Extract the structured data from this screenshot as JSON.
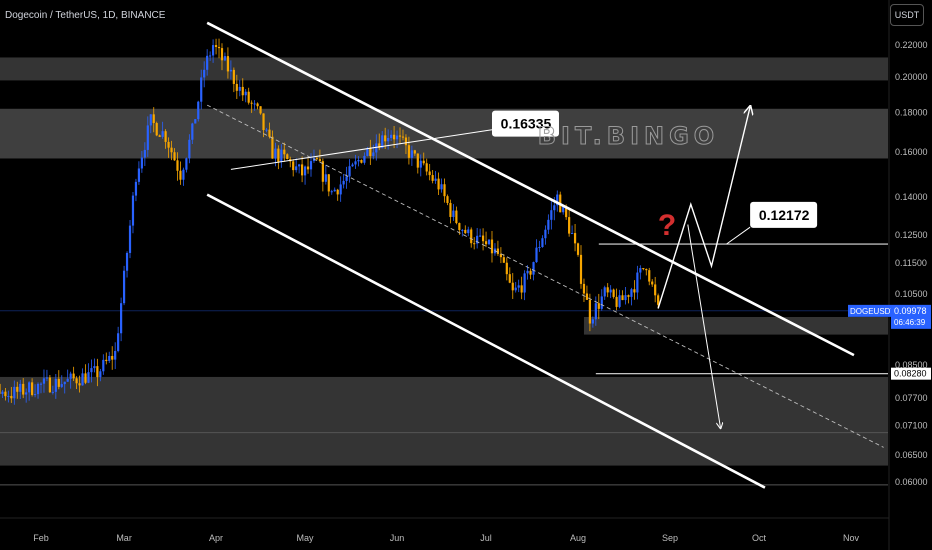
{
  "header": {
    "title": "Dogecoin / TetherUS, 1D, BINANCE"
  },
  "axis": {
    "unit": "USDT"
  },
  "price_ticks": [
    "0.22000",
    "0.20000",
    "0.18000",
    "0.16000",
    "0.14000",
    "0.12500",
    "0.11500",
    "0.10500",
    "0.08500",
    "0.07700",
    "0.07100",
    "0.06500",
    "0.06000"
  ],
  "months": [
    "Feb",
    "Mar",
    "Apr",
    "May",
    "Jun",
    "Jul",
    "Aug",
    "Sep",
    "Oct",
    "Nov"
  ],
  "labels": {
    "symbol": "DOGEUSDT",
    "last_price": "0.09978",
    "countdown": "06:46:39",
    "support": "0.08280"
  },
  "annotations": {
    "callout_high": "0.16335",
    "callout_mid": "0.12172",
    "question": "?",
    "watermark": "BIT.BINGO"
  },
  "colors": {
    "up": "#2962ff",
    "down": "#f7a600",
    "zone": "#4a4a4a",
    "question": "#d32f2f",
    "price_tag": "#2962ff"
  },
  "chart_data": {
    "type": "candlestick",
    "ylim": [
      0.058,
      0.23
    ],
    "scale": "log",
    "zones": [
      {
        "from": 0.198,
        "to": 0.212
      },
      {
        "from": 0.157,
        "to": 0.182
      },
      {
        "from": 0.093,
        "to": 0.098
      },
      {
        "from": 0.063,
        "to": 0.082
      }
    ],
    "levels": [
      0.12172,
      0.0828,
      0.0695,
      0.0595
    ],
    "channel": {
      "start": "Mar 29",
      "end": "Nov 2"
    },
    "price_path": [
      [
        "Jan 1",
        0.08
      ],
      [
        "Jan 8",
        0.078
      ],
      [
        "Jan 15",
        0.079
      ],
      [
        "Jan 22",
        0.078
      ],
      [
        "Feb 1",
        0.08
      ],
      [
        "Feb 10",
        0.081
      ],
      [
        "Feb 20",
        0.083
      ],
      [
        "Feb 26",
        0.088
      ],
      [
        "Mar 1",
        0.11
      ],
      [
        "Mar 5",
        0.15
      ],
      [
        "Mar 10",
        0.175
      ],
      [
        "Mar 15",
        0.168
      ],
      [
        "Mar 20",
        0.15
      ],
      [
        "Mar 24",
        0.17
      ],
      [
        "Mar 28",
        0.205
      ],
      [
        "Mar 31",
        0.22
      ],
      [
        "Apr 5",
        0.205
      ],
      [
        "Apr 10",
        0.19
      ],
      [
        "Apr 15",
        0.18
      ],
      [
        "Apr 20",
        0.16
      ],
      [
        "Apr 25",
        0.156
      ],
      [
        "Apr 30",
        0.15
      ],
      [
        "May 5",
        0.155
      ],
      [
        "May 10",
        0.142
      ],
      [
        "May 15",
        0.148
      ],
      [
        "May 20",
        0.158
      ],
      [
        "May 25",
        0.165
      ],
      [
        "May 30",
        0.17
      ],
      [
        "Jun 5",
        0.16
      ],
      [
        "Jun 10",
        0.152
      ],
      [
        "Jun 15",
        0.145
      ],
      [
        "Jun 20",
        0.132
      ],
      [
        "Jun 25",
        0.125
      ],
      [
        "Jun 30",
        0.122
      ],
      [
        "Jul 5",
        0.118
      ],
      [
        "Jul 10",
        0.105
      ],
      [
        "Jul 15",
        0.11
      ],
      [
        "Jul 20",
        0.125
      ],
      [
        "Jul 25",
        0.14
      ],
      [
        "Jul 30",
        0.125
      ],
      [
        "Aug 5",
        0.098
      ],
      [
        "Aug 10",
        0.105
      ],
      [
        "Aug 15",
        0.102
      ],
      [
        "Aug 20",
        0.108
      ],
      [
        "Aug 24",
        0.115
      ],
      [
        "Aug 28",
        0.0998
      ]
    ],
    "projections": [
      [
        [
          "Aug 28",
          0.1005
        ],
        [
          "Sep 8",
          0.137
        ],
        [
          "Sep 15",
          0.114
        ],
        [
          "Sep 28",
          0.183
        ]
      ],
      [
        [
          "Sep 7",
          0.129
        ],
        [
          "Sep 18",
          0.0705
        ]
      ]
    ]
  }
}
